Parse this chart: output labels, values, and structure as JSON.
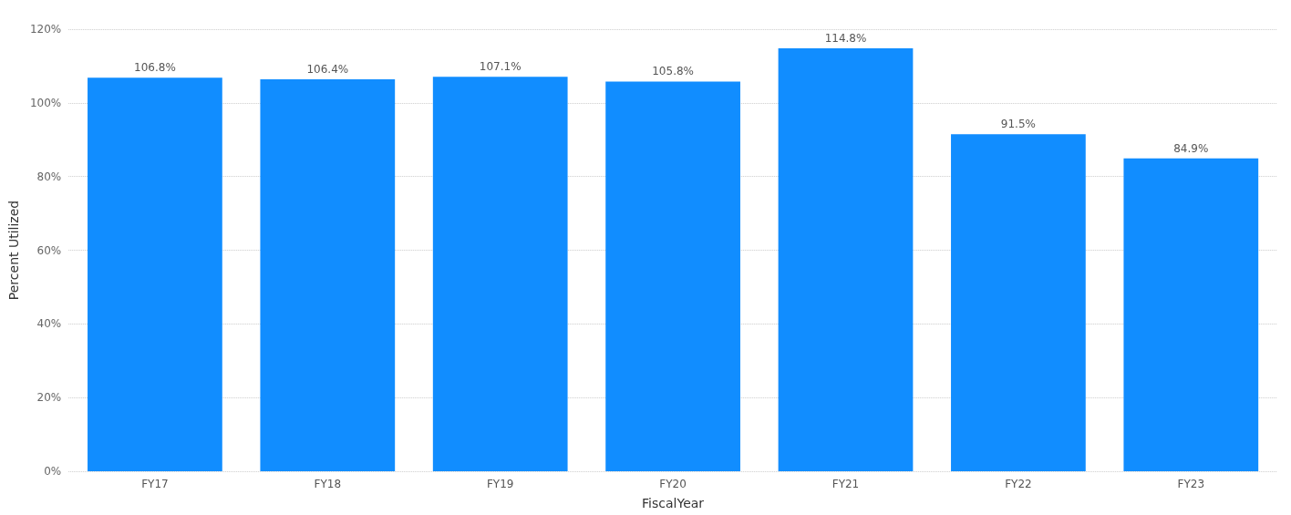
{
  "chart_data": {
    "type": "bar",
    "categories": [
      "FY17",
      "FY18",
      "FY19",
      "FY20",
      "FY21",
      "FY22",
      "FY23"
    ],
    "values": [
      106.8,
      106.4,
      107.1,
      105.8,
      114.8,
      91.5,
      84.9
    ],
    "value_labels": [
      "106.8%",
      "106.4%",
      "107.1%",
      "105.8%",
      "114.8%",
      "91.5%",
      "84.9%"
    ],
    "color": "#118dff",
    "xlabel": "FiscalYear",
    "ylabel": "Percent Utilized",
    "ylim": [
      0,
      120
    ],
    "yticks": [
      {
        "value": 0,
        "label": "0%"
      },
      {
        "value": 20,
        "label": "20%"
      },
      {
        "value": 40,
        "label": "40%"
      },
      {
        "value": 60,
        "label": "60%"
      },
      {
        "value": 80,
        "label": "80%"
      },
      {
        "value": 100,
        "label": "100%"
      },
      {
        "value": 120,
        "label": "120%"
      }
    ],
    "grid": "y"
  }
}
